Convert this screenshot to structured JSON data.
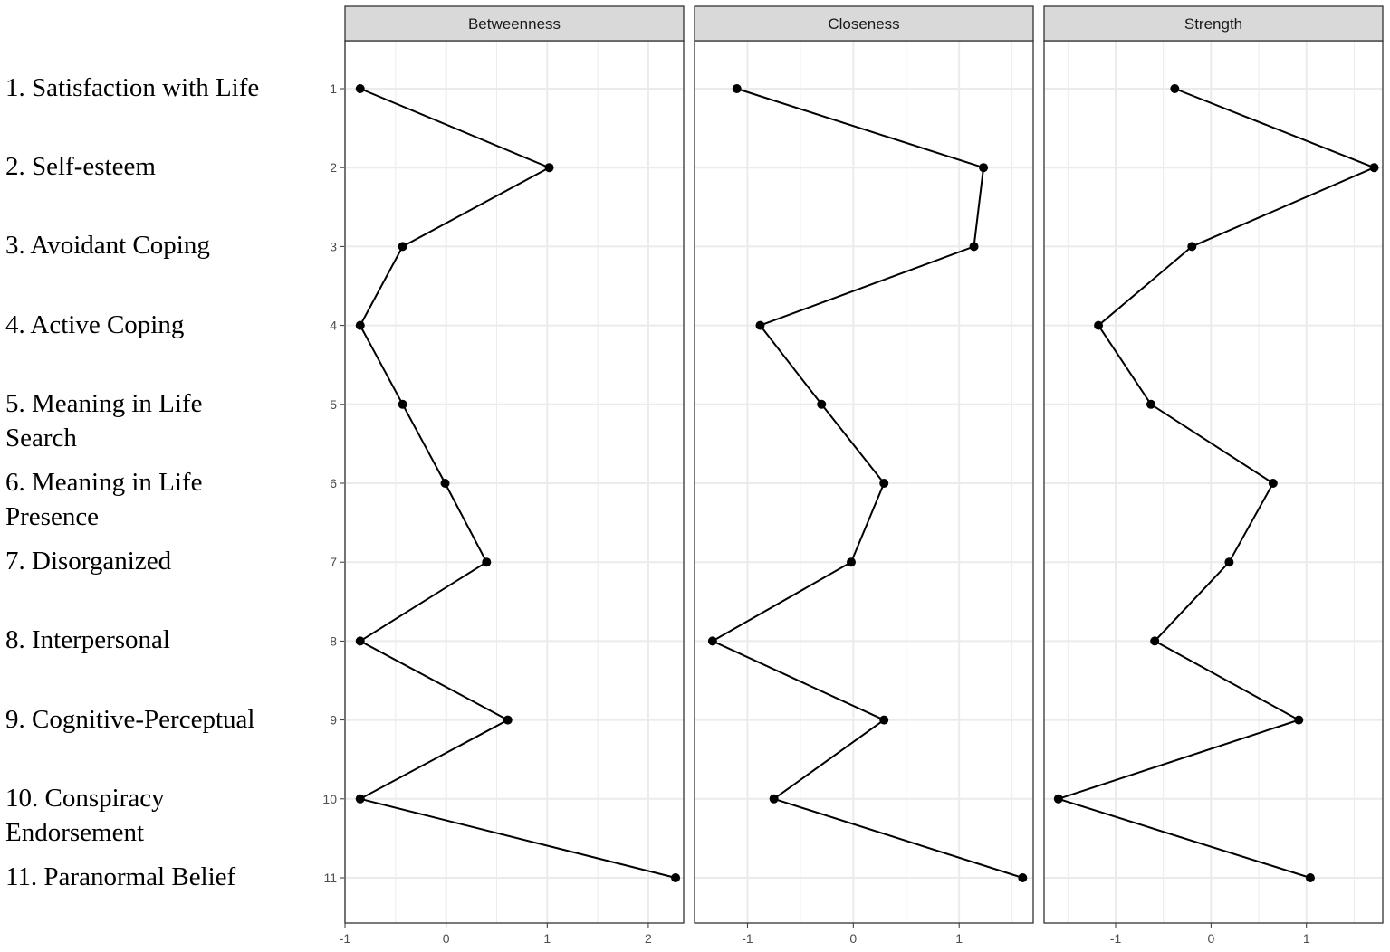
{
  "legend_items": [
    "1. Satisfaction with Life",
    "2. Self-esteem",
    "3. Avoidant Coping",
    "4. Active Coping",
    "5. Meaning in Life\nSearch",
    "6. Meaning in Life\nPresence",
    "7. Disorganized",
    "8. Interpersonal",
    "9. Cognitive-Perceptual",
    "10. Conspiracy\nEndorsement",
    "11. Paranormal Belief"
  ],
  "colors": {
    "strip_fill": "#d9d9d9",
    "panel_border": "#333333",
    "grid": "#ebebeb",
    "line": "#000000",
    "tick_text": "#4d4d4d"
  },
  "chart_data": {
    "type": "line",
    "y_categories": [
      "1",
      "2",
      "3",
      "4",
      "5",
      "6",
      "7",
      "8",
      "9",
      "10",
      "11"
    ],
    "grid": true,
    "panels": [
      {
        "name": "Betweenness",
        "xlim": [
          -1,
          2.35
        ],
        "x_ticks": [
          "-1",
          "0",
          "1",
          "2"
        ],
        "x_tick_values": [
          -1,
          0,
          1,
          2
        ],
        "values": [
          -0.85,
          1.02,
          -0.43,
          -0.85,
          -0.43,
          -0.01,
          0.4,
          -0.85,
          0.61,
          -0.85,
          2.27
        ]
      },
      {
        "name": "Closeness",
        "xlim": [
          -1.5,
          1.7
        ],
        "x_ticks": [
          "-1",
          "0",
          "1"
        ],
        "x_tick_values": [
          -1,
          0,
          1
        ],
        "values": [
          -1.1,
          1.23,
          1.14,
          -0.88,
          -0.3,
          0.29,
          -0.02,
          -1.33,
          0.29,
          -0.75,
          1.6
        ]
      },
      {
        "name": "Strength",
        "xlim": [
          -1.75,
          1.8
        ],
        "x_ticks": [
          "-1",
          "0",
          "1"
        ],
        "x_tick_values": [
          -1,
          0,
          1
        ],
        "values": [
          -0.38,
          1.71,
          -0.2,
          -1.18,
          -0.63,
          0.65,
          0.19,
          -0.59,
          0.92,
          -1.6,
          1.04
        ]
      }
    ]
  }
}
